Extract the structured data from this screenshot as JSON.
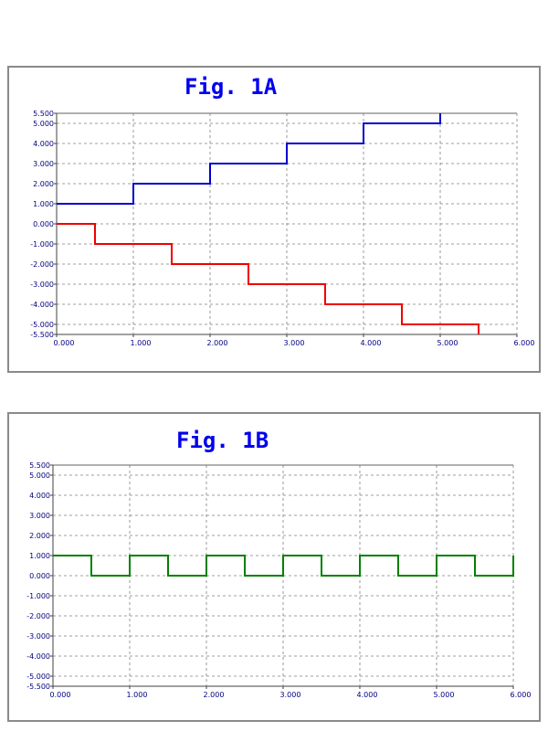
{
  "chart_data": [
    {
      "type": "line",
      "title": "Fig. 1A",
      "xlabel": "",
      "ylabel": "",
      "xlim": [
        0,
        6
      ],
      "ylim": [
        -5.5,
        5.5
      ],
      "grid": true,
      "x_ticks": [
        "0.000",
        "1.000",
        "2.000",
        "3.000",
        "4.000",
        "5.000",
        "6.000"
      ],
      "y_ticks": [
        "5.500",
        "5.000",
        "4.000",
        "3.000",
        "2.000",
        "1.000",
        "0.000",
        "-1.000",
        "-2.000",
        "-3.000",
        "-4.000",
        "-5.000",
        "-5.500"
      ],
      "series": [
        {
          "color": "#0000cc",
          "step": true,
          "points": [
            [
              0,
              1
            ],
            [
              1,
              1
            ],
            [
              1,
              2
            ],
            [
              2,
              2
            ],
            [
              2,
              3
            ],
            [
              3,
              3
            ],
            [
              3,
              4
            ],
            [
              4,
              4
            ],
            [
              4,
              5
            ],
            [
              5,
              5
            ],
            [
              5,
              5.5
            ]
          ]
        },
        {
          "color": "#ee0000",
          "step": true,
          "points": [
            [
              0,
              0
            ],
            [
              0.5,
              0
            ],
            [
              0.5,
              -1
            ],
            [
              1.5,
              -1
            ],
            [
              1.5,
              -2
            ],
            [
              2.5,
              -2
            ],
            [
              2.5,
              -3
            ],
            [
              3.5,
              -3
            ],
            [
              3.5,
              -4
            ],
            [
              4.5,
              -4
            ],
            [
              4.5,
              -5
            ],
            [
              5.5,
              -5
            ],
            [
              5.5,
              -5.5
            ]
          ]
        }
      ]
    },
    {
      "type": "line",
      "title": "Fig. 1B",
      "xlabel": "",
      "ylabel": "",
      "xlim": [
        0,
        6
      ],
      "ylim": [
        -5.5,
        5.5
      ],
      "grid": true,
      "x_ticks": [
        "0.000",
        "1.000",
        "2.000",
        "3.000",
        "4.000",
        "5.000",
        "6.000"
      ],
      "y_ticks": [
        "5.500",
        "5.000",
        "4.000",
        "3.000",
        "2.000",
        "1.000",
        "0.000",
        "-1.000",
        "-2.000",
        "-3.000",
        "-4.000",
        "-5.000",
        "-5.500"
      ],
      "series": [
        {
          "color": "#008000",
          "step": true,
          "points": [
            [
              0,
              1
            ],
            [
              0.5,
              1
            ],
            [
              0.5,
              0
            ],
            [
              1,
              0
            ],
            [
              1,
              1
            ],
            [
              1.5,
              1
            ],
            [
              1.5,
              0
            ],
            [
              2,
              0
            ],
            [
              2,
              1
            ],
            [
              2.5,
              1
            ],
            [
              2.5,
              0
            ],
            [
              3,
              0
            ],
            [
              3,
              1
            ],
            [
              3.5,
              1
            ],
            [
              3.5,
              0
            ],
            [
              4,
              0
            ],
            [
              4,
              1
            ],
            [
              4.5,
              1
            ],
            [
              4.5,
              0
            ],
            [
              5,
              0
            ],
            [
              5,
              1
            ],
            [
              5.5,
              1
            ],
            [
              5.5,
              0
            ],
            [
              6,
              0
            ],
            [
              6,
              1
            ]
          ]
        }
      ]
    }
  ]
}
